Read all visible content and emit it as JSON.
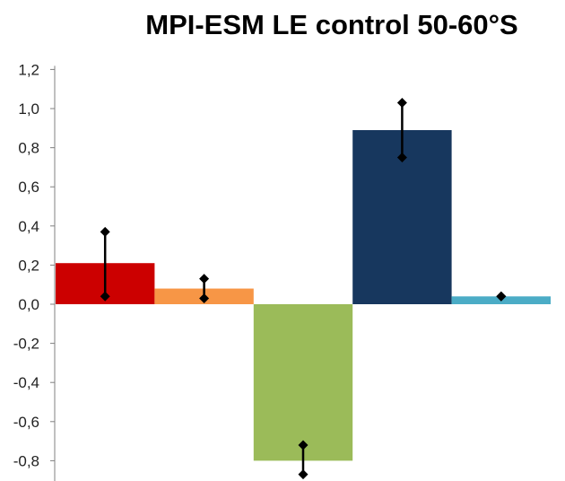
{
  "chart_data": {
    "type": "bar",
    "title": "MPI-ESM LE control 50-60°S",
    "xlabel": "",
    "ylabel": "",
    "ylim": [
      -0.85,
      1.2
    ],
    "yticks": [
      "1,2",
      "1,0",
      "0,8",
      "0,6",
      "0,4",
      "0,2",
      "0,0",
      "-0,2",
      "-0,4",
      "-0,6",
      "-0,8"
    ],
    "ytick_values": [
      1.2,
      1.0,
      0.8,
      0.6,
      0.4,
      0.2,
      0.0,
      -0.2,
      -0.4,
      -0.6,
      -0.8
    ],
    "grid": false,
    "legend": "none",
    "bars": [
      {
        "value": 0.21,
        "err_low": 0.04,
        "err_high": 0.37,
        "color": "#cc0000"
      },
      {
        "value": 0.08,
        "err_low": 0.03,
        "err_high": 0.13,
        "color": "#f79646"
      },
      {
        "value": -0.8,
        "err_low": -0.87,
        "err_high": -0.72,
        "color": "#9bbb59"
      },
      {
        "value": 0.89,
        "err_low": 0.75,
        "err_high": 1.03,
        "color": "#17375e"
      },
      {
        "value": 0.04,
        "err_low": 0.04,
        "err_high": 0.04,
        "color": "#4bacc6"
      }
    ]
  }
}
